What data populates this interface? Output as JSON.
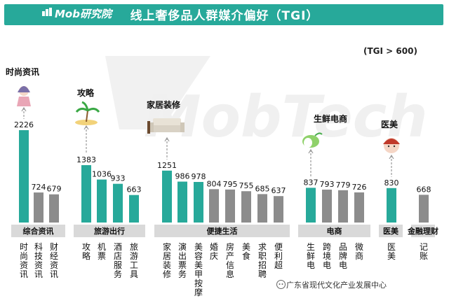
{
  "header": {
    "logo_text": "Mob研究院",
    "title": "线上奢侈品人群媒介偏好（TGI）",
    "note": "(TGI > 600)"
  },
  "watermark": "MobTech",
  "footer": "广东省现代文化产业发展中心",
  "colors": {
    "header": "#27a99a",
    "teal": "#27a99a",
    "gray": "#8c8c8c",
    "group_box": "#d9d9d9"
  },
  "chart_data": {
    "type": "bar",
    "threshold_label": "(TGI > 600)",
    "categories": [
      "时尚资讯",
      "科技资讯",
      "财经资讯",
      "攻略",
      "机票",
      "酒店服务",
      "旅游工具",
      "家居装修",
      "演出票务",
      "美容美甲按摩",
      "婚庆",
      "房产信息",
      "美食",
      "求职招聘",
      "便利超",
      "生鲜电",
      "跨境电",
      "品牌电",
      "微商",
      "医美",
      "记账"
    ],
    "values": [
      2226,
      724,
      679,
      1383,
      1036,
      933,
      663,
      1251,
      986,
      978,
      804,
      795,
      755,
      685,
      637,
      837,
      793,
      779,
      726,
      830,
      668
    ],
    "highlight": [
      "teal",
      "gray",
      "gray",
      "teal",
      "teal",
      "teal",
      "teal",
      "teal",
      "teal",
      "teal",
      "gray",
      "gray",
      "gray",
      "gray",
      "gray",
      "teal",
      "gray",
      "gray",
      "gray",
      "teal",
      "gray"
    ],
    "groups": [
      {
        "name": "综合资讯",
        "start": 0,
        "end": 2
      },
      {
        "name": "旅游出行",
        "start": 3,
        "end": 6
      },
      {
        "name": "便捷生活",
        "start": 7,
        "end": 14
      },
      {
        "name": "电商",
        "start": 15,
        "end": 18
      },
      {
        "name": "医美",
        "start": 19,
        "end": 19
      },
      {
        "name": "金融理财",
        "start": 20,
        "end": 20
      }
    ],
    "callouts": [
      {
        "label": "时尚资讯",
        "index": 0,
        "icon": "fashion-woman-icon"
      },
      {
        "label": "攻略",
        "index": 3,
        "icon": "beach-palm-icon"
      },
      {
        "label": "家居装修",
        "index": 7,
        "icon": "sofa-icon"
      },
      {
        "label": "生鲜电商",
        "index": 15,
        "icon": "vegetable-icon"
      },
      {
        "label": "医美",
        "index": 19,
        "icon": "beauty-face-icon"
      }
    ]
  }
}
